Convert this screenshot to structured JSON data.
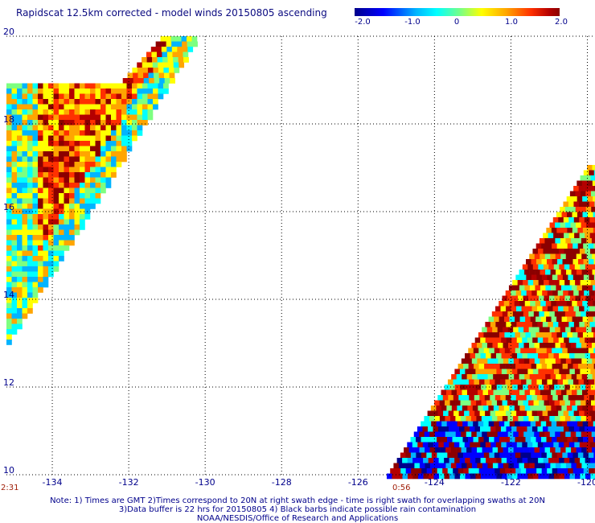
{
  "title": "Rapidscat 12.5km corrected - model winds 20150805 ascending",
  "colorbar": {
    "ticks": [
      "-2.0",
      "-1.0",
      "0",
      "1.0",
      "2.0"
    ],
    "range": [
      -2.0,
      2.0
    ],
    "colors": [
      "#00008b",
      "#0000ff",
      "#00b4ff",
      "#00ffff",
      "#7dff80",
      "#ffff00",
      "#ffa500",
      "#ff3000",
      "#b40000",
      "#8b0000"
    ]
  },
  "map": {
    "lon_range": [
      -135.2,
      -119.8
    ],
    "lat_range": [
      10,
      20
    ],
    "lon_ticks": [
      -134,
      -132,
      -130,
      -128,
      -126,
      -124,
      -122,
      -120
    ],
    "lon_labels": [
      "-134",
      "-132",
      "-130",
      "-128",
      "-126",
      "-124",
      "-122",
      "-120"
    ],
    "lat_ticks": [
      10,
      12,
      14,
      16,
      18,
      20
    ],
    "lat_labels": [
      "10",
      "12",
      "14",
      "16",
      "18",
      "20"
    ],
    "grid": "dotted",
    "swath_times": [
      "2:31",
      "0:56"
    ]
  },
  "notes": {
    "line1": "Note: 1) Times are GMT 2)Times correspond to 20N at right swath edge - time is right swath for overlapping swaths at 20N",
    "line2": "3)Data buffer is 22 hrs for 20150805 4) Black barbs indicate possible rain contamination",
    "line3": "NOAA/NESDIS/Office of Research and Applications"
  }
}
